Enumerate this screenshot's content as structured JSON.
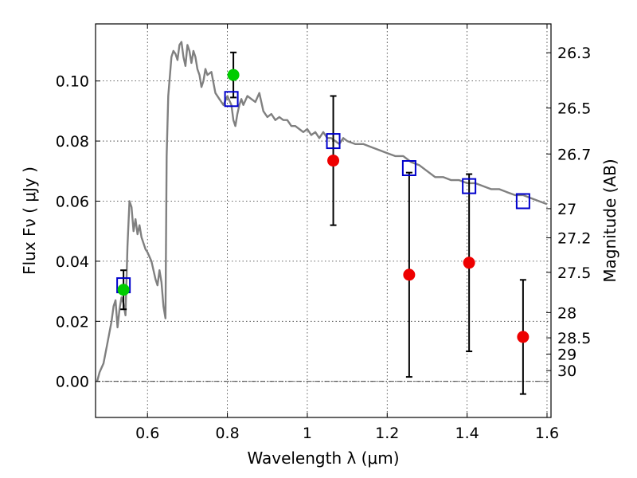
{
  "chart_data": {
    "type": "scatter",
    "title": "",
    "xlabel": "Wavelength  λ (μm)",
    "ylabel": "Flux  Fν  ( μJy )",
    "y2label": "Magnitude (AB)",
    "xlim": [
      0.47,
      1.61
    ],
    "ylim": [
      -0.012,
      0.119
    ],
    "grid": true,
    "xticks": [
      0.6,
      0.8,
      1.0,
      1.2,
      1.4,
      1.6
    ],
    "xtick_labels": [
      "0.6",
      "0.8",
      "1",
      "1.2",
      "1.4",
      "1.6"
    ],
    "yticks": [
      0.0,
      0.02,
      0.04,
      0.06,
      0.08,
      0.1
    ],
    "ytick_labels": [
      "0.00",
      "0.02",
      "0.04",
      "0.06",
      "0.08",
      "0.10"
    ],
    "y2ticks": [
      {
        "label": "26.3",
        "flux": 0.1094
      },
      {
        "label": "26.5",
        "flux": 0.091
      },
      {
        "label": "26.7",
        "flux": 0.0757
      },
      {
        "label": "27",
        "flux": 0.0575
      },
      {
        "label": "27.2",
        "flux": 0.0478
      },
      {
        "label": "27.5",
        "flux": 0.0363
      },
      {
        "label": "28",
        "flux": 0.0229
      },
      {
        "label": "28.5",
        "flux": 0.0145
      },
      {
        "label": "29",
        "flux": 0.0091
      },
      {
        "label": "30",
        "flux": 0.0036
      }
    ],
    "series": [
      {
        "marker": "line",
        "color": "#808080",
        "x": [
          0.474,
          0.48,
          0.49,
          0.5,
          0.51,
          0.515,
          0.52,
          0.525,
          0.53,
          0.535,
          0.54,
          0.545,
          0.55,
          0.555,
          0.56,
          0.565,
          0.57,
          0.575,
          0.58,
          0.585,
          0.59,
          0.595,
          0.6,
          0.61,
          0.62,
          0.625,
          0.63,
          0.635,
          0.64,
          0.645,
          0.648,
          0.652,
          0.66,
          0.665,
          0.67,
          0.675,
          0.68,
          0.685,
          0.69,
          0.695,
          0.7,
          0.705,
          0.71,
          0.715,
          0.72,
          0.725,
          0.73,
          0.735,
          0.74,
          0.745,
          0.75,
          0.76,
          0.77,
          0.78,
          0.79,
          0.8,
          0.81,
          0.815,
          0.82,
          0.825,
          0.83,
          0.835,
          0.84,
          0.85,
          0.86,
          0.87,
          0.88,
          0.89,
          0.9,
          0.91,
          0.92,
          0.93,
          0.94,
          0.95,
          0.96,
          0.97,
          0.98,
          0.99,
          1.0,
          1.01,
          1.02,
          1.03,
          1.04,
          1.05,
          1.06,
          1.07,
          1.08,
          1.09,
          1.1,
          1.12,
          1.14,
          1.16,
          1.18,
          1.2,
          1.22,
          1.24,
          1.26,
          1.28,
          1.3,
          1.32,
          1.34,
          1.36,
          1.38,
          1.4,
          1.42,
          1.44,
          1.46,
          1.48,
          1.5,
          1.52,
          1.54,
          1.56,
          1.58,
          1.6
        ],
        "y": [
          0.0,
          0.003,
          0.006,
          0.013,
          0.02,
          0.025,
          0.027,
          0.018,
          0.024,
          0.028,
          0.026,
          0.022,
          0.045,
          0.06,
          0.058,
          0.05,
          0.054,
          0.049,
          0.052,
          0.048,
          0.046,
          0.044,
          0.043,
          0.04,
          0.034,
          0.032,
          0.037,
          0.033,
          0.025,
          0.021,
          0.075,
          0.095,
          0.108,
          0.11,
          0.109,
          0.107,
          0.112,
          0.113,
          0.108,
          0.105,
          0.112,
          0.11,
          0.106,
          0.11,
          0.108,
          0.104,
          0.102,
          0.098,
          0.1,
          0.104,
          0.102,
          0.103,
          0.096,
          0.094,
          0.092,
          0.095,
          0.092,
          0.087,
          0.085,
          0.089,
          0.092,
          0.094,
          0.092,
          0.095,
          0.094,
          0.093,
          0.096,
          0.09,
          0.088,
          0.089,
          0.087,
          0.088,
          0.087,
          0.087,
          0.085,
          0.085,
          0.084,
          0.083,
          0.084,
          0.082,
          0.083,
          0.081,
          0.083,
          0.081,
          0.081,
          0.08,
          0.079,
          0.081,
          0.08,
          0.079,
          0.079,
          0.078,
          0.077,
          0.076,
          0.075,
          0.075,
          0.073,
          0.072,
          0.07,
          0.068,
          0.068,
          0.067,
          0.067,
          0.066,
          0.066,
          0.065,
          0.064,
          0.064,
          0.063,
          0.062,
          0.062,
          0.061,
          0.06,
          0.059
        ]
      },
      {
        "marker": "open-square",
        "color": "#0000cc",
        "x": [
          0.54,
          0.81,
          1.065,
          1.255,
          1.405,
          1.54
        ],
        "y": [
          0.032,
          0.094,
          0.08,
          0.071,
          0.065,
          0.06
        ]
      },
      {
        "marker": "circle",
        "color": "#00cc00",
        "x": [
          0.54,
          0.815
        ],
        "y": [
          0.0305,
          0.102
        ],
        "yerr": [
          0.0065,
          0.0075
        ]
      },
      {
        "marker": "circle",
        "color": "#ee0000",
        "x": [
          1.065,
          1.255,
          1.405,
          1.54
        ],
        "y": [
          0.0735,
          0.0355,
          0.0395,
          0.0148
        ],
        "yerr": [
          0.0215,
          0.034,
          0.0295,
          0.019
        ]
      }
    ]
  }
}
